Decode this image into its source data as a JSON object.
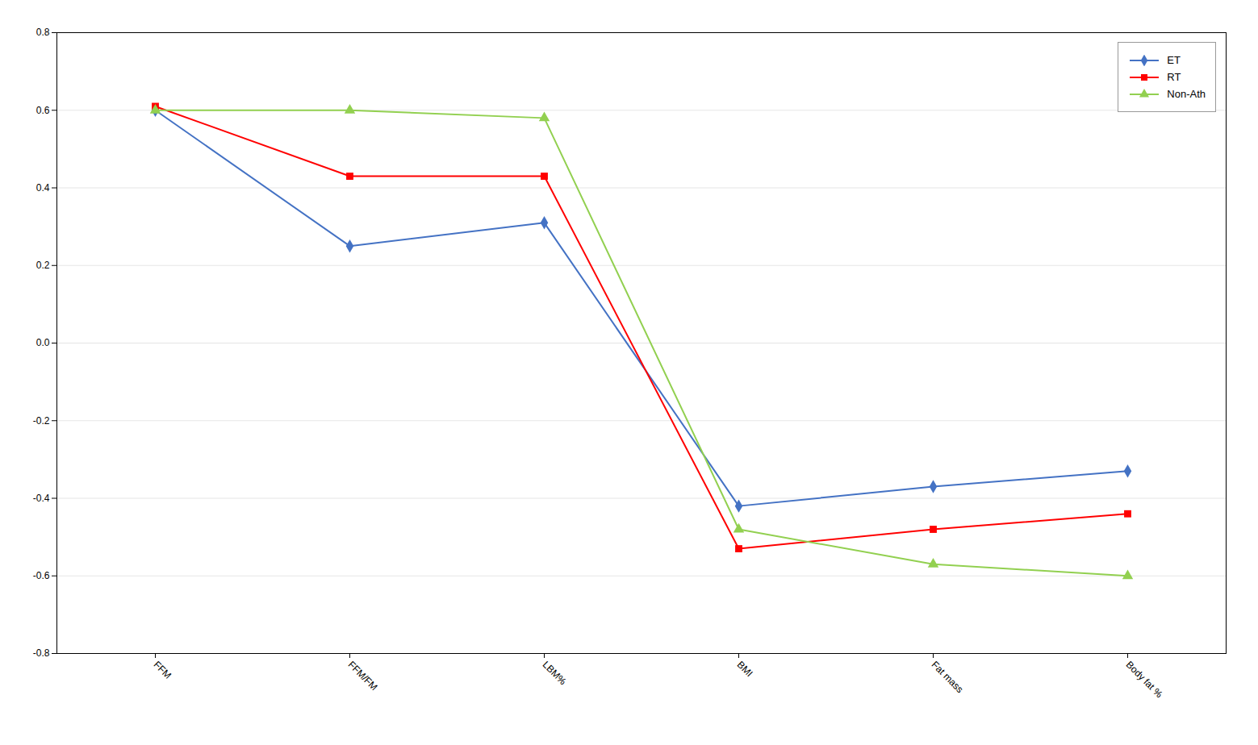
{
  "chart_data": {
    "type": "line",
    "categories": [
      "FFM",
      "FFM/FM",
      "LBM%",
      "BMI",
      "Fat mass",
      "Body fat %"
    ],
    "series": [
      {
        "name": "ET",
        "color": "#4472C4",
        "marker": "diamond",
        "line_style": "solid",
        "values": [
          0.6,
          0.25,
          0.31,
          -0.42,
          -0.37,
          -0.33
        ]
      },
      {
        "name": "RT",
        "color": "#FF0000",
        "marker": "square",
        "line_style": "solid",
        "values": [
          0.61,
          0.43,
          0.43,
          -0.53,
          -0.48,
          -0.44
        ]
      },
      {
        "name": "Non-Ath",
        "color": "#92D050",
        "marker": "triangle",
        "line_style": "solid",
        "values": [
          0.6,
          0.6,
          0.58,
          -0.48,
          -0.57,
          -0.6
        ]
      }
    ],
    "ylim": [
      -0.8,
      0.8
    ],
    "yticks": [
      -0.8,
      -0.6,
      -0.4,
      -0.2,
      {
        "value": 0,
        "label": "0.0"
      },
      0.2,
      0.4,
      0.6,
      0.8
    ],
    "grid": true,
    "legend": "upper right"
  }
}
